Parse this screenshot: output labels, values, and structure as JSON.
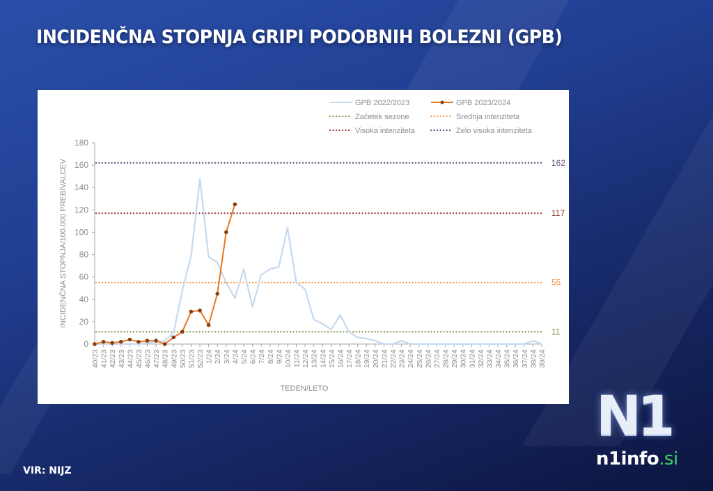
{
  "header": {
    "title": "INCIDENČNA STOPNJA GRIPI PODOBNIH BOLEZNI (GPB)"
  },
  "footer": {
    "source": "VIR: NIJZ"
  },
  "brand": {
    "logo_mark": "N1",
    "logo_name": "n1info",
    "logo_tld": ".si",
    "colors": {
      "background": "#213f93",
      "tld": "#3fd16a"
    }
  },
  "chart_data": {
    "type": "line",
    "title": "",
    "xlabel": "TEDEN/LETO",
    "ylabel": "INCIDENČNA  STOPNJA/100.000  PREBIVALCEV",
    "ylim": [
      0,
      180
    ],
    "yticks": [
      0,
      20,
      40,
      60,
      80,
      100,
      120,
      140,
      160,
      180
    ],
    "grid": false,
    "legend_position": "top-right",
    "categories": [
      "40/23",
      "41/23",
      "42/23",
      "43/23",
      "44/23",
      "45/23",
      "46/23",
      "47/23",
      "48/23",
      "49/23",
      "50/23",
      "51/23",
      "52/23",
      "1/24",
      "2/24",
      "3/24",
      "4/24",
      "5/24",
      "6/24",
      "7/24",
      "8/24",
      "9/24",
      "10/24",
      "11/24",
      "12/24",
      "13/24",
      "14/24",
      "15/24",
      "16/24",
      "17/24",
      "18/24",
      "19/24",
      "20/24",
      "21/24",
      "22/24",
      "23/24",
      "24/24",
      "25/24",
      "26/24",
      "27/24",
      "28/24",
      "29/24",
      "30/24",
      "31/24",
      "32/24",
      "33/24",
      "34/24",
      "35/24",
      "36/24",
      "37/24",
      "38/24",
      "39/24"
    ],
    "series": [
      {
        "name": "GPB 2022/2023",
        "color": "#c5d9f1",
        "marker": false,
        "values": [
          0,
          0,
          0,
          0,
          0,
          0,
          1,
          2,
          3,
          10,
          48,
          79,
          148,
          78,
          73,
          55,
          41,
          67,
          33,
          62,
          67,
          69,
          104,
          55,
          49,
          22,
          18,
          13,
          26,
          11,
          6,
          5,
          3,
          0,
          0,
          3,
          0,
          0,
          0,
          0,
          0,
          0,
          0,
          0,
          0,
          0,
          0,
          0,
          0,
          0,
          3,
          0
        ]
      },
      {
        "name": "GPB 2023/2024",
        "color": "#e87722",
        "marker": true,
        "values": [
          0,
          2,
          1,
          2,
          4,
          2,
          3,
          3,
          0,
          6,
          11,
          29,
          30,
          17,
          45,
          100,
          125
        ]
      }
    ],
    "thresholds": [
      {
        "name": "Začetek sezone",
        "value": 11,
        "label": "11",
        "color": "#77933c"
      },
      {
        "name": "Srednja intenziteta",
        "value": 55,
        "label": "55",
        "color": "#f79646"
      },
      {
        "name": "Visoka intenziteta",
        "value": 117,
        "label": "117",
        "color": "#953735"
      },
      {
        "name": "Zelo visoka intenziteta",
        "value": 162,
        "label": "162",
        "color": "#604a7b"
      }
    ],
    "legend": [
      "GPB 2022/2023",
      "GPB 2023/2024",
      "Začetek sezone",
      "Srednja intenziteta",
      "Visoka intenziteta",
      "Zelo visoka intenziteta"
    ]
  }
}
